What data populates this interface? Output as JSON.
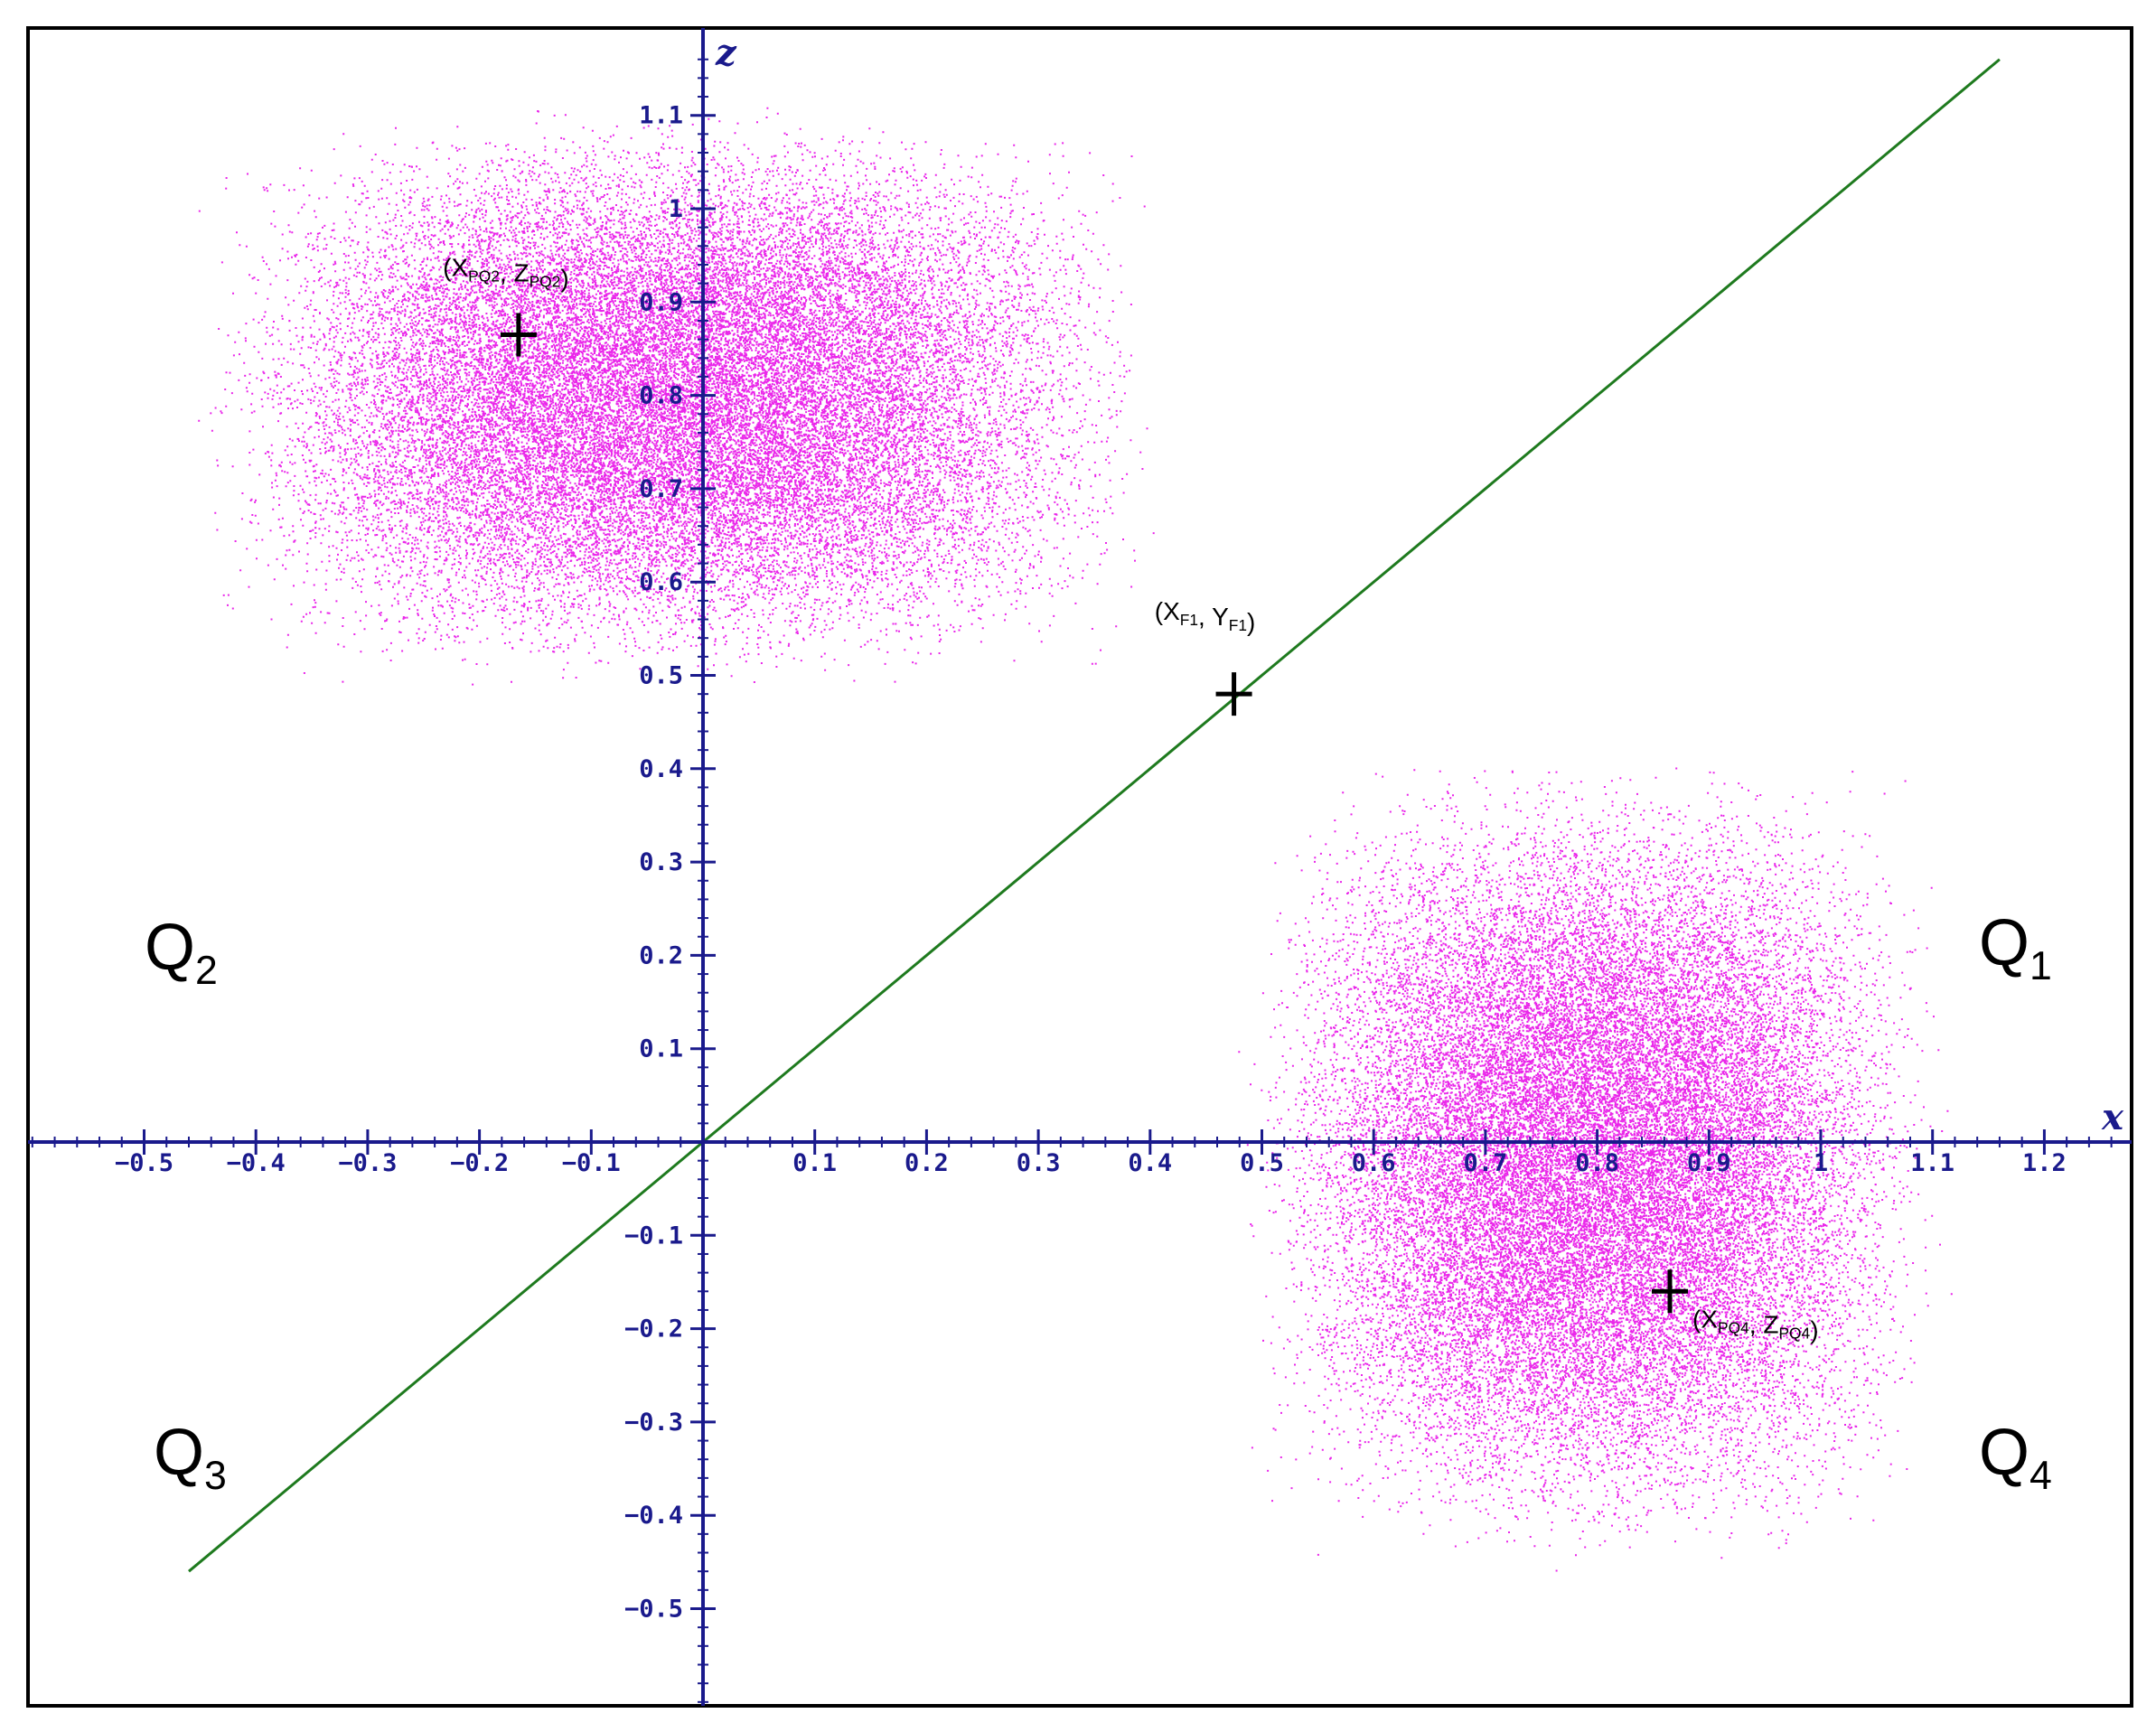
{
  "chart_data": {
    "type": "scatter",
    "title": "",
    "xlabel": "x",
    "ylabel": "z",
    "xlim": [
      -0.63,
      1.29
    ],
    "ylim": [
      -0.61,
      1.19
    ],
    "grid": false,
    "x_ticks": [
      -0.5,
      -0.4,
      -0.3,
      -0.2,
      -0.1,
      0.1,
      0.2,
      0.3,
      0.4,
      0.5,
      0.6,
      0.7,
      0.8,
      0.9,
      1,
      1.1,
      1.2
    ],
    "x_tick_labels": [
      "−0.5",
      "−0.4",
      "−0.3",
      "−0.2",
      "−0.1",
      "0.1",
      "0.2",
      "0.3",
      "0.4",
      "0.5",
      "0.6",
      "0.7",
      "0.8",
      "0.9",
      "1",
      "1.1",
      "1.2"
    ],
    "y_ticks": [
      -0.5,
      -0.4,
      -0.3,
      -0.2,
      -0.1,
      0.1,
      0.2,
      0.3,
      0.4,
      0.5,
      0.6,
      0.7,
      0.8,
      0.9,
      1,
      1.1
    ],
    "y_tick_labels": [
      "−0.5",
      "−0.4",
      "−0.3",
      "−0.2",
      "−0.1",
      "0.1",
      "0.2",
      "0.3",
      "0.4",
      "0.5",
      "0.6",
      "0.7",
      "0.8",
      "0.9",
      "1",
      "1.1"
    ],
    "clusters": [
      {
        "quadrant": "Q2",
        "x_range": [
          -0.47,
          0.42
        ],
        "z_range": [
          0.48,
          1.12
        ],
        "center": [
          -0.165,
          0.865
        ],
        "center_label": {
          "X": "X",
          "Z": "Z",
          "sub": "PQ2"
        }
      },
      {
        "quadrant": "Q4",
        "x_range": [
          0.47,
          1.12
        ],
        "z_range": [
          -0.47,
          0.43
        ],
        "center": [
          0.865,
          -0.16
        ],
        "center_label": {
          "X": "X",
          "Z": "Z",
          "sub": "PQ4"
        }
      }
    ],
    "line": {
      "x": [
        -0.46,
        1.16
      ],
      "z": [
        -0.46,
        1.16
      ]
    },
    "point_f1": {
      "x": 0.475,
      "z": 0.48,
      "label": {
        "X": "X",
        "Y": "Y",
        "sub": "F1"
      }
    },
    "quadrant_labels": [
      {
        "name": "Q1",
        "letter": "Q",
        "number": "1"
      },
      {
        "name": "Q2",
        "letter": "Q",
        "number": "2"
      },
      {
        "name": "Q3",
        "letter": "Q",
        "number": "3"
      },
      {
        "name": "Q4",
        "letter": "Q",
        "number": "4"
      }
    ]
  },
  "colors": {
    "axis": "#1a1a8c",
    "scatter": "#e600e6",
    "line": "#1e7a1e",
    "marker": "#000000",
    "text": "#000000",
    "frame": "#000000"
  }
}
